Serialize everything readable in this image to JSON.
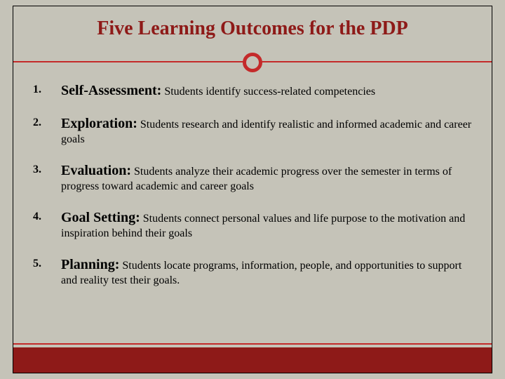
{
  "title": "Five Learning Outcomes for the PDP",
  "accent_color": "#8e1a18",
  "rule_color": "#c42a2a",
  "background_color": "#c5c3b8",
  "title_fontsize": 28,
  "heading_fontsize": 20,
  "body_fontsize": 16,
  "items": [
    {
      "num": "1.",
      "heading": "Self-Assessment:",
      "desc": "Students identify success-related competencies"
    },
    {
      "num": "2.",
      "heading": "Exploration:",
      "desc": "Students research and identify realistic and informed academic and career goals"
    },
    {
      "num": "3.",
      "heading": "Evaluation:",
      "desc": "Students analyze their academic progress over the semester in terms of progress toward academic and career goals"
    },
    {
      "num": "4.",
      "heading": "Goal Setting:",
      "desc": "Students connect personal values and life purpose to the motivation and   inspiration behind their goals"
    },
    {
      "num": "5.",
      "heading": "Planning:",
      "desc": "Students locate programs, information, people, and opportunities to support and reality test their goals."
    }
  ]
}
